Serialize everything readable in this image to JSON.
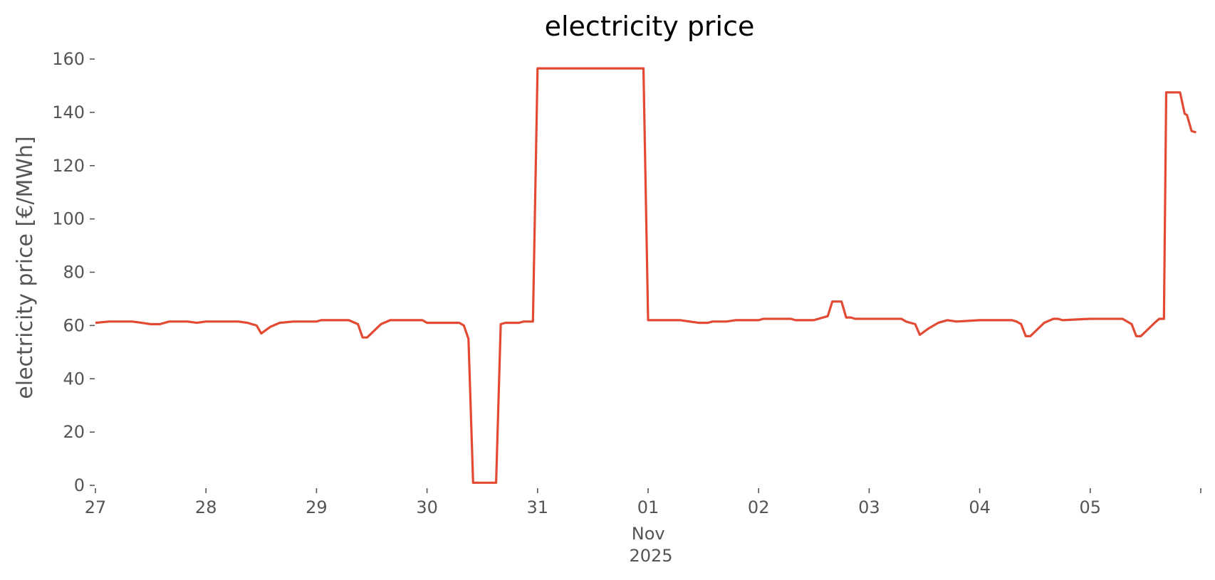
{
  "chart_data": {
    "type": "line",
    "title": "electricity price",
    "xlabel": "",
    "ylabel": "electricity price [€/MWh]",
    "ylim": [
      0,
      160
    ],
    "xlim": [
      "2025-10-27 00:00",
      "2025-11-06 00:00"
    ],
    "grid": false,
    "y_ticks": [
      0,
      20,
      40,
      60,
      80,
      100,
      120,
      140,
      160
    ],
    "x_tick_labels": [
      "27",
      "28",
      "29",
      "30",
      "31",
      "01",
      "02",
      "03",
      "04",
      "05"
    ],
    "x_tick_dates": [
      "2025-10-27",
      "2025-10-28",
      "2025-10-29",
      "2025-10-30",
      "2025-10-31",
      "2025-11-01",
      "2025-11-02",
      "2025-11-03",
      "2025-11-04",
      "2025-11-05"
    ],
    "x_secondary_label": "Nov\n2025",
    "series": [
      {
        "color": "#e24a33",
        "points": [
          [
            "2025-10-27 00:00",
            61
          ],
          [
            "2025-10-27 03:00",
            61.5
          ],
          [
            "2025-10-27 08:00",
            61.5
          ],
          [
            "2025-10-27 10:00",
            61
          ],
          [
            "2025-10-27 12:00",
            60.5
          ],
          [
            "2025-10-27 14:00",
            60.5
          ],
          [
            "2025-10-27 16:00",
            61.5
          ],
          [
            "2025-10-27 20:00",
            61.5
          ],
          [
            "2025-10-27 22:00",
            61
          ],
          [
            "2025-10-28 00:00",
            61.5
          ],
          [
            "2025-10-28 07:00",
            61.5
          ],
          [
            "2025-10-28 09:00",
            61
          ],
          [
            "2025-10-28 11:00",
            60
          ],
          [
            "2025-10-28 12:00",
            57
          ],
          [
            "2025-10-28 14:00",
            59.5
          ],
          [
            "2025-10-28 16:00",
            61
          ],
          [
            "2025-10-28 19:00",
            61.5
          ],
          [
            "2025-10-29 00:00",
            61.5
          ],
          [
            "2025-10-29 01:00",
            62
          ],
          [
            "2025-10-29 07:00",
            62
          ],
          [
            "2025-10-29 09:00",
            60.5
          ],
          [
            "2025-10-29 10:00",
            55.5
          ],
          [
            "2025-10-29 11:00",
            55.5
          ],
          [
            "2025-10-29 14:00",
            60.5
          ],
          [
            "2025-10-29 16:00",
            62
          ],
          [
            "2025-10-29 23:00",
            62
          ],
          [
            "2025-10-30 00:00",
            61
          ],
          [
            "2025-10-30 07:00",
            61
          ],
          [
            "2025-10-30 08:00",
            60
          ],
          [
            "2025-10-30 09:00",
            55
          ],
          [
            "2025-10-30 10:00",
            1
          ],
          [
            "2025-10-30 15:00",
            1
          ],
          [
            "2025-10-30 16:00",
            60.5
          ],
          [
            "2025-10-30 17:00",
            61
          ],
          [
            "2025-10-30 20:00",
            61
          ],
          [
            "2025-10-30 21:00",
            61.5
          ],
          [
            "2025-10-30 23:00",
            61.5
          ],
          [
            "2025-10-31 00:00",
            156.5
          ],
          [
            "2025-10-31 23:00",
            156.5
          ],
          [
            "2025-11-01 00:00",
            62
          ],
          [
            "2025-11-01 07:00",
            62
          ],
          [
            "2025-11-01 09:00",
            61.5
          ],
          [
            "2025-11-01 11:00",
            61
          ],
          [
            "2025-11-01 13:00",
            61
          ],
          [
            "2025-11-01 14:00",
            61.5
          ],
          [
            "2025-11-01 17:00",
            61.5
          ],
          [
            "2025-11-01 19:00",
            62
          ],
          [
            "2025-11-02 00:00",
            62
          ],
          [
            "2025-11-02 01:00",
            62.5
          ],
          [
            "2025-11-02 07:00",
            62.5
          ],
          [
            "2025-11-02 08:00",
            62
          ],
          [
            "2025-11-02 12:00",
            62
          ],
          [
            "2025-11-02 14:00",
            63
          ],
          [
            "2025-11-02 15:00",
            63.5
          ],
          [
            "2025-11-02 16:00",
            69
          ],
          [
            "2025-11-02 18:00",
            69
          ],
          [
            "2025-11-02 19:00",
            63
          ],
          [
            "2025-11-02 20:00",
            63
          ],
          [
            "2025-11-02 21:00",
            62.5
          ],
          [
            "2025-11-03 07:00",
            62.5
          ],
          [
            "2025-11-03 08:00",
            61.5
          ],
          [
            "2025-11-03 10:00",
            60.5
          ],
          [
            "2025-11-03 11:00",
            56.5
          ],
          [
            "2025-11-03 13:00",
            59
          ],
          [
            "2025-11-03 15:00",
            61
          ],
          [
            "2025-11-03 17:00",
            62
          ],
          [
            "2025-11-03 19:00",
            61.5
          ],
          [
            "2025-11-04 00:00",
            62
          ],
          [
            "2025-11-04 07:00",
            62
          ],
          [
            "2025-11-04 08:00",
            61.5
          ],
          [
            "2025-11-04 09:00",
            60.5
          ],
          [
            "2025-11-04 10:00",
            56
          ],
          [
            "2025-11-04 11:00",
            56
          ],
          [
            "2025-11-04 14:00",
            61
          ],
          [
            "2025-11-04 16:00",
            62.5
          ],
          [
            "2025-11-04 17:00",
            62.5
          ],
          [
            "2025-11-04 18:00",
            62
          ],
          [
            "2025-11-05 00:00",
            62.5
          ],
          [
            "2025-11-05 07:00",
            62.5
          ],
          [
            "2025-11-05 08:00",
            61.5
          ],
          [
            "2025-11-05 09:00",
            60.5
          ],
          [
            "2025-11-05 10:00",
            56
          ],
          [
            "2025-11-05 11:00",
            56
          ],
          [
            "2025-11-05 14:00",
            61
          ],
          [
            "2025-11-05 15:00",
            62.5
          ],
          [
            "2025-11-05 16:00",
            62.5
          ],
          [
            "2025-11-05 16:30",
            147.5
          ],
          [
            "2025-11-05 19:30",
            147.5
          ],
          [
            "2025-11-05 20:30",
            139.5
          ],
          [
            "2025-11-05 21:00",
            139
          ],
          [
            "2025-11-05 22:00",
            133
          ],
          [
            "2025-11-05 23:00",
            132.5
          ]
        ]
      }
    ]
  }
}
